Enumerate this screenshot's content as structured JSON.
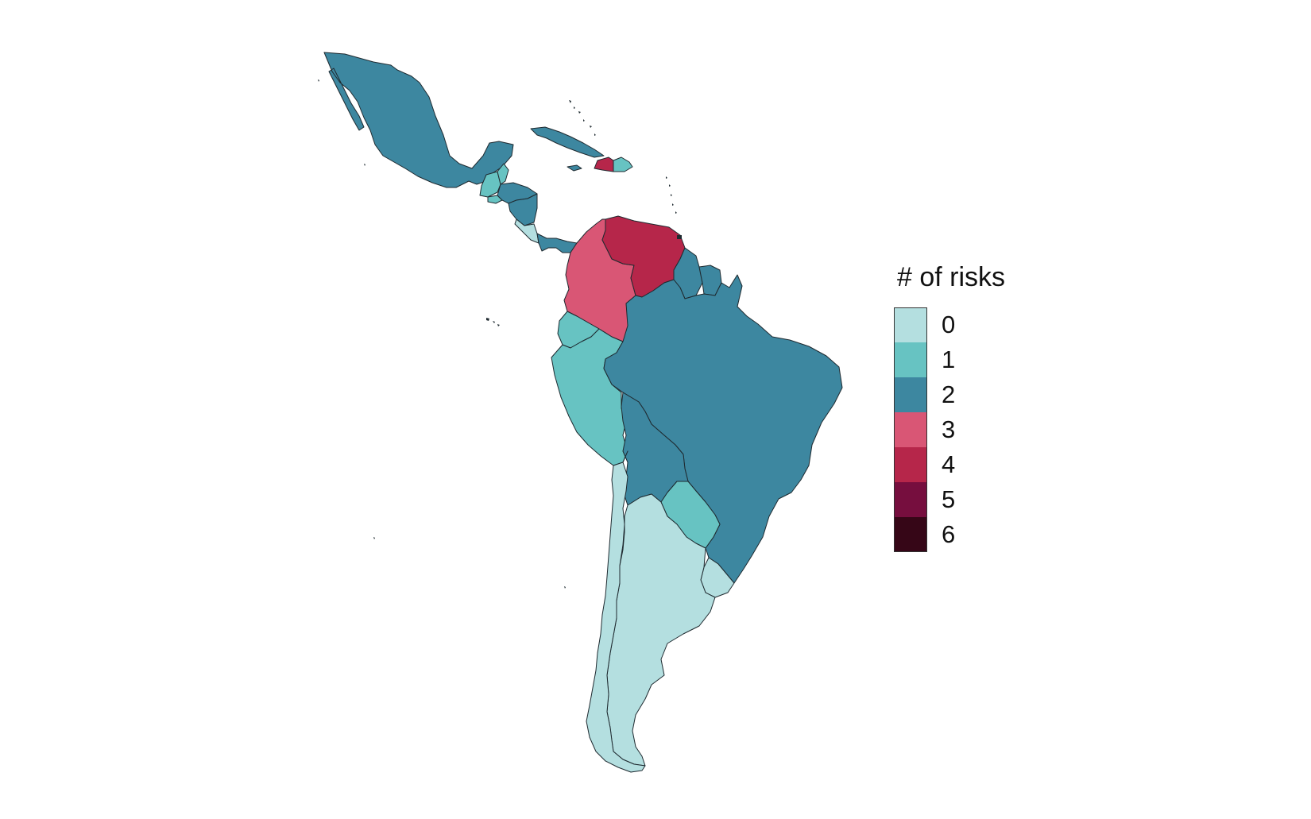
{
  "legend": {
    "title": "# of risks",
    "classes": [
      {
        "label": "0",
        "color": "#b4dfe0"
      },
      {
        "label": "1",
        "color": "#67c3c2"
      },
      {
        "label": "2",
        "color": "#3d87a0"
      },
      {
        "label": "3",
        "color": "#d95675"
      },
      {
        "label": "4",
        "color": "#b6264a"
      },
      {
        "label": "5",
        "color": "#760e3e"
      },
      {
        "label": "6",
        "color": "#360617"
      }
    ]
  },
  "countries": [
    {
      "id": "mexico",
      "risks": 2
    },
    {
      "id": "guatemala",
      "risks": 1
    },
    {
      "id": "belize",
      "risks": 1
    },
    {
      "id": "honduras",
      "risks": 2
    },
    {
      "id": "el-salvador",
      "risks": 1
    },
    {
      "id": "nicaragua",
      "risks": 2
    },
    {
      "id": "costa-rica",
      "risks": 0
    },
    {
      "id": "panama",
      "risks": 2
    },
    {
      "id": "cuba",
      "risks": 2
    },
    {
      "id": "jamaica",
      "risks": 2
    },
    {
      "id": "haiti",
      "risks": 4
    },
    {
      "id": "dominican-republic",
      "risks": 1
    },
    {
      "id": "colombia",
      "risks": 3
    },
    {
      "id": "venezuela",
      "risks": 4
    },
    {
      "id": "guyana",
      "risks": 2
    },
    {
      "id": "suriname",
      "risks": 2
    },
    {
      "id": "ecuador",
      "risks": 1
    },
    {
      "id": "peru",
      "risks": 1
    },
    {
      "id": "brazil",
      "risks": 2
    },
    {
      "id": "bolivia",
      "risks": 2
    },
    {
      "id": "paraguay",
      "risks": 1
    },
    {
      "id": "uruguay",
      "risks": 0
    },
    {
      "id": "chile",
      "risks": 0
    },
    {
      "id": "argentina",
      "risks": 0
    }
  ]
}
